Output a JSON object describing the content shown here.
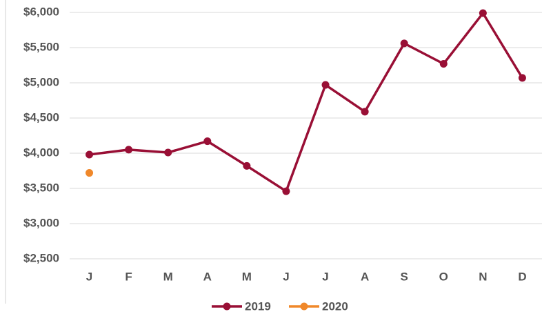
{
  "chart_data": {
    "type": "line",
    "categories": [
      "J",
      "F",
      "M",
      "A",
      "M",
      "J",
      "J",
      "A",
      "S",
      "O",
      "N",
      "D"
    ],
    "series": [
      {
        "name": "2019",
        "color": "#990f35",
        "values": [
          3980,
          4050,
          4010,
          4170,
          3820,
          3460,
          4970,
          4590,
          5560,
          5270,
          5990,
          5070
        ]
      },
      {
        "name": "2020",
        "color": "#f0882a",
        "values": [
          3720,
          null,
          null,
          null,
          null,
          null,
          null,
          null,
          null,
          null,
          null,
          null
        ]
      }
    ],
    "ylim": [
      2500,
      6000
    ],
    "yticks": [
      {
        "value": 2500,
        "label": "$2,500"
      },
      {
        "value": 3000,
        "label": "$3,000"
      },
      {
        "value": 3500,
        "label": "$3,500"
      },
      {
        "value": 4000,
        "label": "$4,000"
      },
      {
        "value": 4500,
        "label": "$4,500"
      },
      {
        "value": 5000,
        "label": "$5,000"
      },
      {
        "value": 5500,
        "label": "$5,500"
      },
      {
        "value": 6000,
        "label": "$6,000"
      }
    ],
    "grid": true,
    "legend": "bottom"
  }
}
